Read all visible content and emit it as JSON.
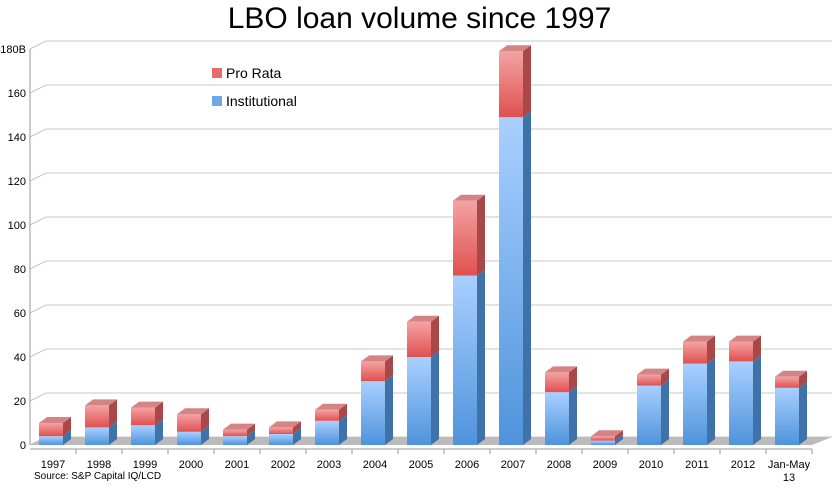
{
  "chart_data": {
    "type": "bar",
    "stacked": true,
    "title": "LBO loan volume since 1997",
    "source": "Source: S&P Capital IQ/LCD",
    "categories": [
      "1997",
      "1998",
      "1999",
      "2000",
      "2001",
      "2002",
      "2003",
      "2004",
      "2005",
      "2006",
      "2007",
      "2008",
      "2009",
      "2010",
      "2011",
      "2012",
      "Jan-May 13"
    ],
    "series": [
      {
        "name": "Institutional",
        "color": "#6fa8e8",
        "values": [
          4,
          8,
          9,
          6,
          4,
          5,
          11,
          29,
          40,
          77,
          149,
          24,
          2,
          27,
          37,
          38,
          26
        ]
      },
      {
        "name": "Pro Rata",
        "color": "#e86a6a",
        "values": [
          6,
          10,
          8,
          8,
          3,
          3,
          5,
          9,
          16,
          34,
          30,
          9,
          2,
          5,
          10,
          9,
          5
        ]
      }
    ],
    "yticks": [
      "0",
      "20",
      "40",
      "60",
      "80",
      "100",
      "120",
      "140",
      "160",
      "$180B"
    ],
    "ylim": [
      0,
      180
    ],
    "grid": true,
    "legend_placement": "top-left"
  }
}
